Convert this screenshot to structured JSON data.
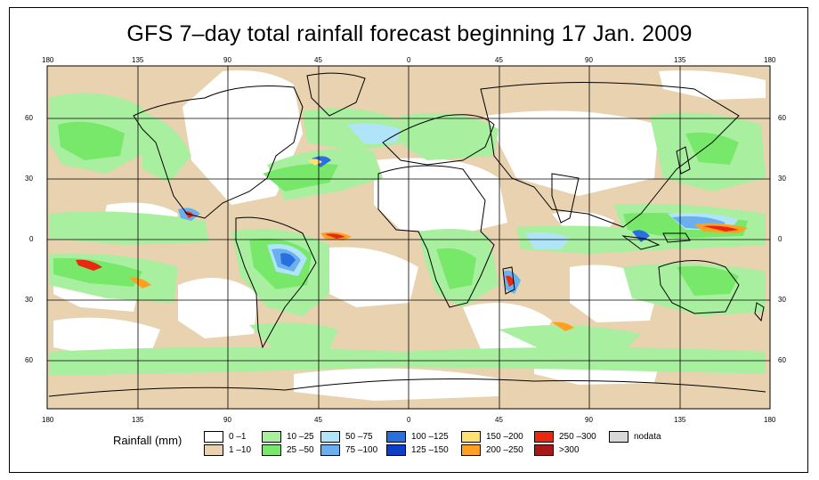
{
  "title": "GFS 7–day total rainfall forecast beginning 17 Jan. 2009",
  "axes": {
    "top_lon_labels": [
      "180",
      "135",
      "90",
      "45",
      "0",
      "45",
      "90",
      "135",
      "180"
    ],
    "bottom_lon_labels": [
      "180",
      "135",
      "90",
      "45",
      "0",
      "45",
      "90",
      "135",
      "180"
    ],
    "left_lat_labels": [
      "60",
      "30",
      "0",
      "30",
      "60"
    ],
    "right_lat_labels": [
      "60",
      "30",
      "0",
      "30",
      "60"
    ]
  },
  "legend": {
    "title": "Rainfall (mm)",
    "items": [
      {
        "label": "0 –1",
        "color": "#ffffff"
      },
      {
        "label": "1 –10",
        "color": "#e8d2b0"
      },
      {
        "label": "10 –25",
        "color": "#a8f0a0"
      },
      {
        "label": "25 –50",
        "color": "#78e86a"
      },
      {
        "label": "50 –75",
        "color": "#b0e4f8"
      },
      {
        "label": "75 –100",
        "color": "#6ab0f0"
      },
      {
        "label": "100 –125",
        "color": "#2a6fe0"
      },
      {
        "label": "125 –150",
        "color": "#0a40c8"
      },
      {
        "label": "150 –200",
        "color": "#ffe070"
      },
      {
        "label": "200 –250",
        "color": "#ffa020"
      },
      {
        "label": "250 –300",
        "color": "#e82810"
      },
      {
        "label": ">300",
        "color": "#a81818"
      },
      {
        "label": "nodata",
        "color": "#d8d8d8"
      }
    ]
  }
}
